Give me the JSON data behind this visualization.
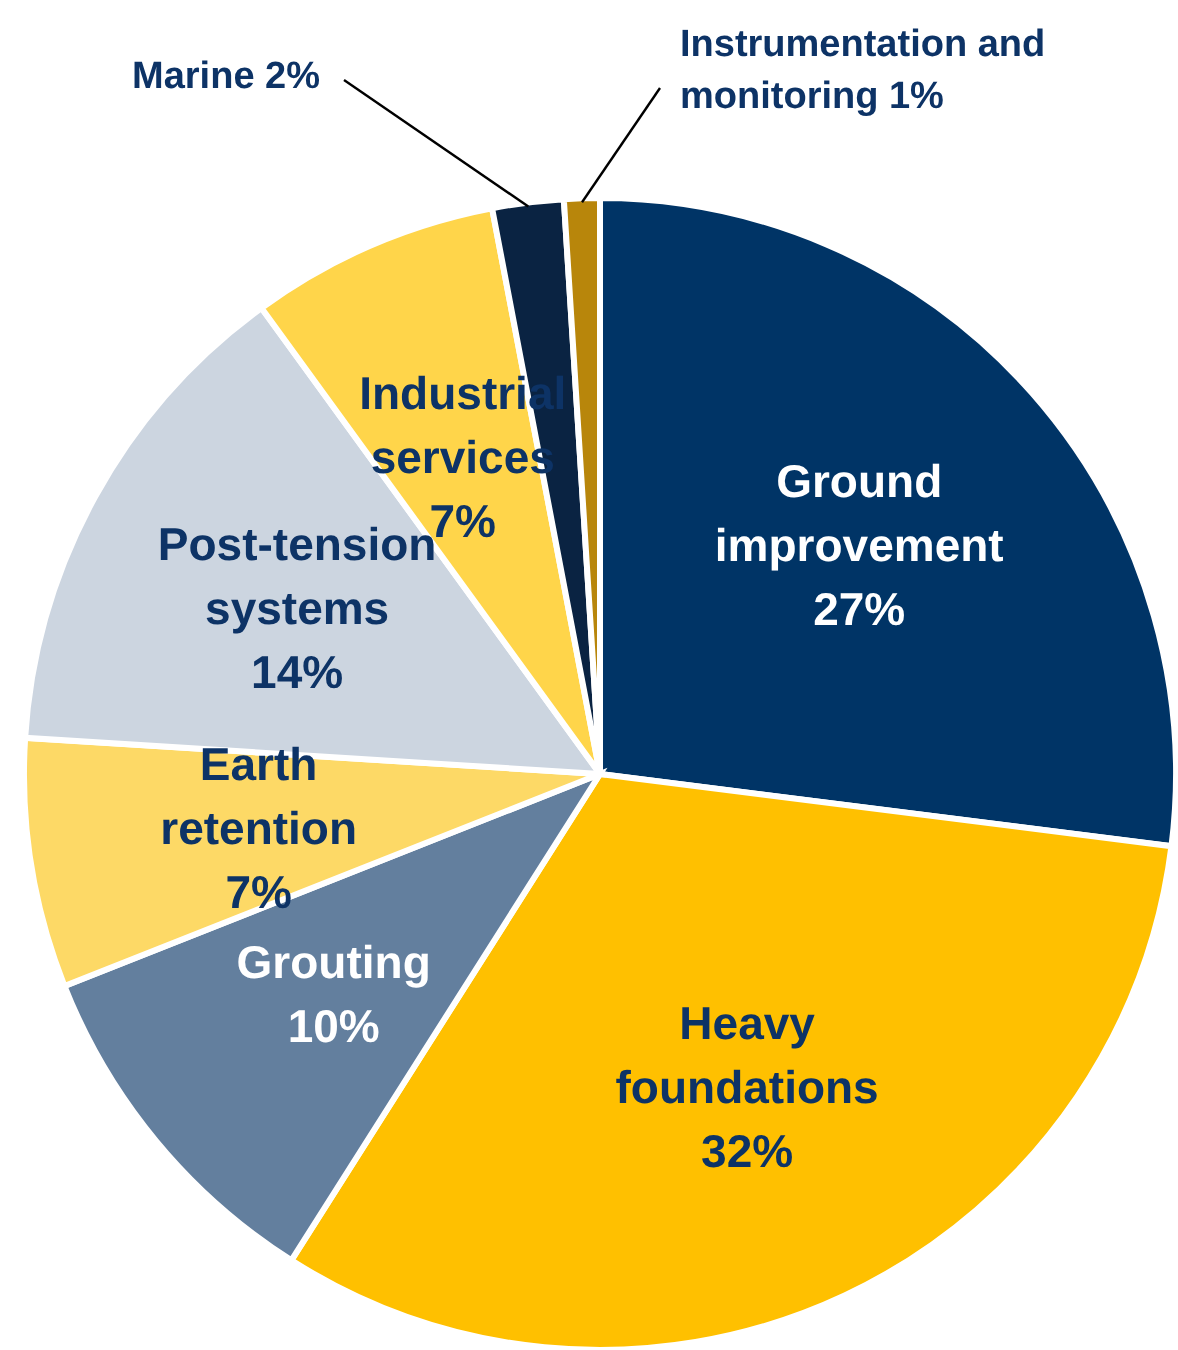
{
  "chart_data": {
    "type": "pie",
    "categories": [
      "Ground improvement",
      "Heavy foundations",
      "Grouting",
      "Earth retention",
      "Post-tension systems",
      "Industrial services",
      "Marine",
      "Instrumentation and monitoring"
    ],
    "values": [
      27,
      32,
      10,
      7,
      14,
      7,
      2,
      1
    ],
    "value_labels": [
      "27%",
      "32%",
      "10%",
      "7%",
      "14%",
      "7%",
      "2%",
      "1%"
    ],
    "colors": [
      "#003466",
      "#ffc000",
      "#637f9e",
      "#fdd966",
      "#ccd5e0",
      "#ffd54a",
      "#0a2342",
      "#b8860b"
    ],
    "legend": false
  }
}
